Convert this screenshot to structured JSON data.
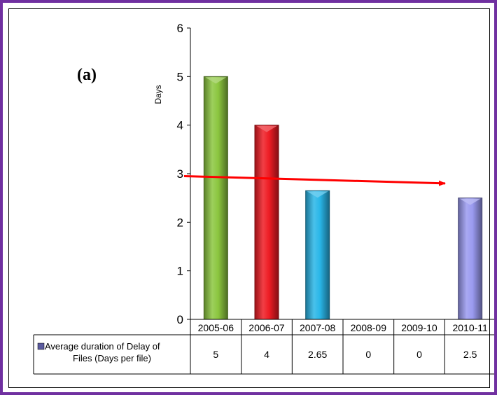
{
  "panel_label": "(a)",
  "chart_data": {
    "type": "bar",
    "title": "",
    "xlabel": "",
    "ylabel": "Days",
    "ylim": [
      0,
      6
    ],
    "yticks": [
      0,
      1,
      2,
      3,
      4,
      5,
      6
    ],
    "categories": [
      "2005-06",
      "2006-07",
      "2007-08",
      "2008-09",
      "2009-10",
      "2010-11"
    ],
    "series": [
      {
        "name": "Average duration of Delay of Files (Days per file)",
        "values": [
          5,
          4,
          2.65,
          0,
          0,
          2.5
        ],
        "value_labels": [
          "5",
          "4",
          "2.65",
          "0",
          "0",
          "2.5"
        ],
        "colors": [
          "#8cc63f",
          "#ee1c24",
          "#29b6e8",
          "#8f8fe0",
          "#8f8fe0",
          "#9a9af0"
        ]
      }
    ],
    "data_table": true,
    "legend_marker_color": "#5a5a9e",
    "trend_arrow": {
      "color": "#ff0000",
      "from_value": 2.95,
      "to_value": 2.8
    }
  }
}
